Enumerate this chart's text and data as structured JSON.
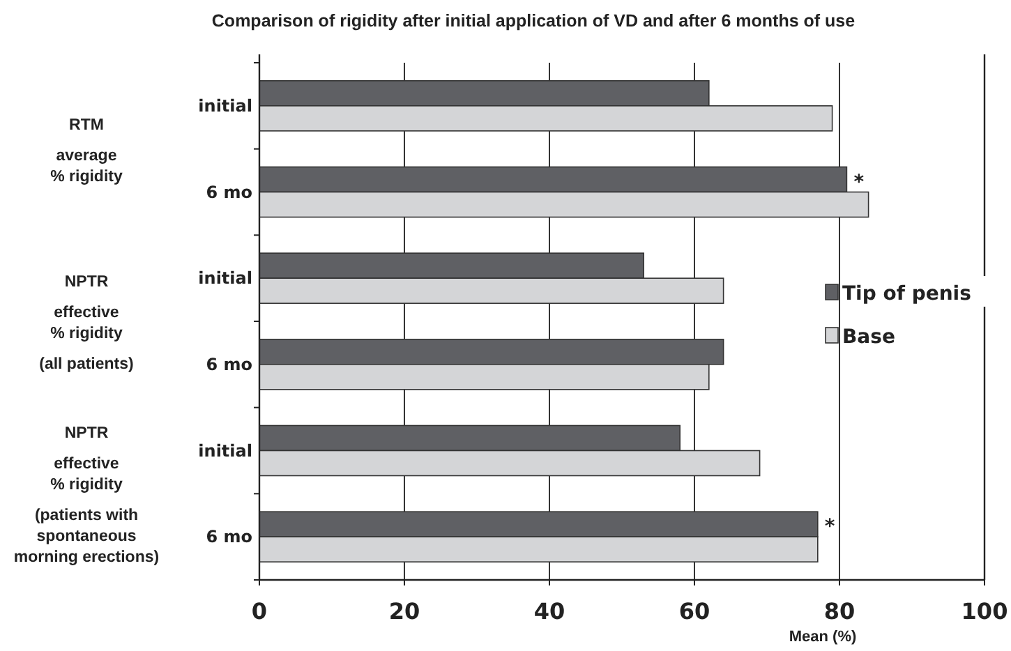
{
  "chart_data": {
    "type": "bar",
    "orientation": "horizontal",
    "title": "Comparison of rigidity after initial application of VD and after 6 months of use",
    "xlabel": "Mean (%)",
    "categories": [
      "initial",
      "6 mo",
      "initial",
      "6 mo",
      "initial",
      "6 mo"
    ],
    "series": [
      {
        "name": "Tip of penis",
        "color": "#5f6064",
        "values": [
          62,
          81,
          53,
          64,
          58,
          77
        ]
      },
      {
        "name": "Base",
        "color": "#d4d5d7",
        "values": [
          79,
          84,
          64,
          62,
          69,
          77
        ]
      }
    ],
    "xlim": [
      0,
      100
    ],
    "xticks": [
      0,
      20,
      40,
      60,
      80,
      100
    ],
    "grid": "x",
    "legend": "right",
    "annotations": [
      "RTM\n\naverage\n% rigidity",
      "NPTR\n\neffective\n% rigidity\n\n(all patients)",
      "NPTR\n\neffective\n% rigidity\n\n(patients with\nspontaneous\nmorning erections)",
      {
        "text": "*",
        "x": 81,
        "y": "6 mo"
      },
      {
        "text": "*",
        "x": 77
      }
    ]
  }
}
